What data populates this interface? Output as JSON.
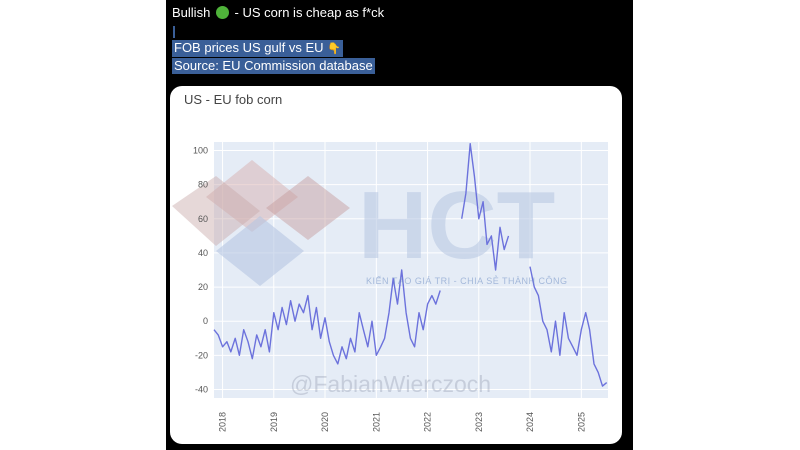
{
  "post": {
    "line1_before": "Bullish",
    "line1_after": "- US corn is cheap as f*ck",
    "line2": "FOB prices US gulf vs EU",
    "line3": "Source: EU Commission database",
    "emoji": [
      "green-circle",
      "pointing-down-hand"
    ]
  },
  "watermark": {
    "logo": "HCT",
    "tagline": "KIẾN TẠO GIÁ TRỊ - CHIA SẺ THÀNH CÔNG",
    "handle": "@FabianWierczoch"
  },
  "colors": {
    "line": "#6c72dc",
    "plot_bg": "#e5ecf6",
    "post_bg": "#000000",
    "selection": "#3a5f98",
    "logo_red": "#d4a8a8",
    "logo_blue": "#b6c6e2"
  },
  "chart_data": {
    "type": "line",
    "title": "US - EU fob corn",
    "xlabel": "",
    "ylabel": "",
    "ylim": [
      -45,
      105
    ],
    "yticks": [
      -40,
      -20,
      0,
      20,
      40,
      60,
      80,
      100
    ],
    "xlim": [
      "2017-11-01",
      "2025-07-10"
    ],
    "xticks": [
      "2018",
      "2019",
      "2020",
      "2021",
      "2022",
      "2023",
      "2024",
      "2025"
    ],
    "grid": true,
    "legend": "none",
    "series": [
      {
        "x": [
          "2017-11-01",
          "2017-12-01",
          "2018-01-01",
          "2018-02-01",
          "2018-03-01",
          "2018-04-01",
          "2018-05-01",
          "2018-06-01",
          "2018-07-01",
          "2018-08-01",
          "2018-09-01",
          "2018-10-01",
          "2018-11-01",
          "2018-12-01",
          "2019-01-01",
          "2019-02-01",
          "2019-03-01",
          "2019-04-01",
          "2019-05-01",
          "2019-06-01",
          "2019-07-01",
          "2019-08-01",
          "2019-09-01",
          "2019-10-01",
          "2019-11-01",
          "2019-12-01",
          "2020-01-01",
          "2020-02-01",
          "2020-03-01",
          "2020-04-01",
          "2020-05-01",
          "2020-06-01",
          "2020-07-01",
          "2020-08-01",
          "2020-09-01",
          "2020-10-01",
          "2020-11-01",
          "2020-12-01",
          "2021-01-01",
          "2021-02-01",
          "2021-03-01",
          "2021-04-01",
          "2021-05-01",
          "2021-06-01",
          "2021-07-01",
          "2021-08-01",
          "2021-09-01",
          "2021-10-01",
          "2021-11-01",
          "2021-12-01",
          "2022-01-01",
          "2022-02-01",
          "2022-03-01",
          "2022-04-01"
        ],
        "y": [
          -5,
          -8,
          -15,
          -12,
          -18,
          -10,
          -20,
          -5,
          -12,
          -22,
          -8,
          -15,
          -5,
          -18,
          5,
          -5,
          8,
          -2,
          12,
          0,
          10,
          5,
          15,
          -5,
          8,
          -10,
          2,
          -12,
          -20,
          -25,
          -15,
          -22,
          -10,
          -18,
          5,
          -5,
          -15,
          0,
          -20,
          -15,
          -10,
          5,
          25,
          10,
          30,
          5,
          -10,
          -15,
          5,
          -5,
          10,
          15,
          10,
          18
        ]
      },
      {
        "x": [
          "2022-09-01",
          "2022-10-01",
          "2022-11-01",
          "2022-12-01",
          "2023-01-01",
          "2023-02-01",
          "2023-03-01",
          "2023-04-01",
          "2023-05-01",
          "2023-06-01",
          "2023-07-01",
          "2023-08-01"
        ],
        "y": [
          60,
          75,
          104,
          85,
          60,
          70,
          45,
          50,
          30,
          55,
          42,
          50
        ]
      },
      {
        "x": [
          "2024-01-01",
          "2024-02-01",
          "2024-03-01",
          "2024-04-01",
          "2024-05-01",
          "2024-06-01",
          "2024-07-01",
          "2024-08-01",
          "2024-09-01",
          "2024-10-01",
          "2024-11-01",
          "2024-12-01",
          "2025-01-01",
          "2025-02-01",
          "2025-03-01",
          "2025-04-01",
          "2025-05-01",
          "2025-06-01",
          "2025-07-01"
        ],
        "y": [
          32,
          20,
          15,
          0,
          -5,
          -18,
          0,
          -20,
          5,
          -10,
          -15,
          -20,
          -5,
          5,
          -5,
          -25,
          -30,
          -38,
          -36
        ]
      }
    ]
  }
}
